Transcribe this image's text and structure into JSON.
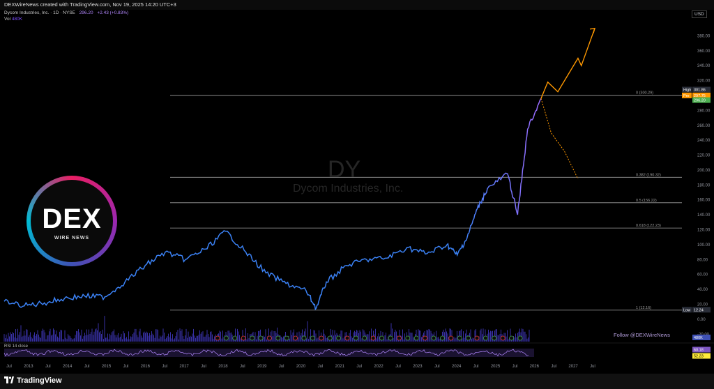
{
  "header": {
    "created_by": "DEXWireNews created with TradingView.com, Nov 19, 2025 14:20 UTC+3",
    "symbol": "Dycom Industries, Inc. · 1D · NYSE",
    "price": "296.20",
    "change": "+2.43 (+0.83%)",
    "vol_label": "Vol",
    "vol_value": "480K",
    "currency": "USD"
  },
  "watermark": {
    "ticker": "DY",
    "name": "Dycom Industries, Inc."
  },
  "logo": {
    "text": "DEX",
    "subtitle": "WIRE NEWS"
  },
  "follow_text": "Follow @DEXWireNews",
  "rsi": {
    "label": "RSI 14 close",
    "value": "52.23",
    "value2": "60.18"
  },
  "footer": {
    "brand": "TradingView"
  },
  "colors": {
    "price_line": "#3b82f6",
    "price_line_recent": "#9c6bff",
    "projection_up": "#ff9800",
    "projection_down": "#ff9800",
    "volume": "#4338ca"
  },
  "chart_data": {
    "type": "line",
    "series": [
      {
        "x": [
          "2012-07",
          "2013-01",
          "2013-07",
          "2014-01",
          "2014-07",
          "2015-01",
          "2015-07",
          "2016-01",
          "2016-07",
          "2017-01",
          "2017-07",
          "2018-01",
          "2018-07",
          "2019-01",
          "2019-07",
          "2020-01",
          "2020-04",
          "2020-07",
          "2021-01",
          "2021-07",
          "2022-01",
          "2022-07",
          "2023-01",
          "2023-07",
          "2023-10",
          "2024-01",
          "2024-04",
          "2024-07",
          "2025-01",
          "2025-04",
          "2025-07",
          "2025-11"
        ],
        "values": [
          24,
          18,
          22,
          28,
          31,
          30,
          50,
          72,
          90,
          80,
          94,
          118,
          90,
          62,
          48,
          38,
          15,
          50,
          72,
          80,
          82,
          96,
          88,
          100,
          86,
          110,
          148,
          175,
          195,
          140,
          255,
          296
        ]
      }
    ],
    "ylim": [
      -30,
      400
    ],
    "y_ticks": [
      "380.00",
      "360.00",
      "340.00",
      "320.00",
      "300.00",
      "280.00",
      "260.00",
      "240.00",
      "220.00",
      "200.00",
      "180.00",
      "160.00",
      "140.00",
      "120.00",
      "100.00",
      "80.00",
      "60.00",
      "40.00",
      "20.00",
      "0.00",
      "-20.00"
    ],
    "x_ticks": [
      "Jul",
      "2013",
      "Jul",
      "2014",
      "Jul",
      "2015",
      "Jul",
      "2016",
      "Jul",
      "2017",
      "Jul",
      "2018",
      "Jul",
      "2019",
      "Jul",
      "2020",
      "Jul",
      "2021",
      "Jul",
      "2022",
      "Jul",
      "2023",
      "Jul",
      "2024",
      "Jul",
      "2025",
      "Jul",
      "2026",
      "Jul",
      "2027",
      "Jul"
    ],
    "fib_levels": [
      {
        "label": "0 (300.29)",
        "value": 300.29
      },
      {
        "label": "0.382 (190.32)",
        "value": 190.32
      },
      {
        "label": "0.5 (156.22)",
        "value": 156.22
      },
      {
        "label": "0.618 (122.23)",
        "value": 122.23
      },
      {
        "label": "1 (12.16)",
        "value": 12.16
      }
    ],
    "price_badges": [
      {
        "label": "High",
        "value": "301.86",
        "color": "#2a2e39"
      },
      {
        "label": "Pre",
        "value": "297.75",
        "color": "#ff9800"
      },
      {
        "label": "",
        "value": "296.20",
        "color": "#4caf50"
      },
      {
        "label": "Low",
        "value": "12.24",
        "color": "#2a2e39"
      }
    ],
    "projection_up": {
      "x": [
        "2025-11",
        "2026-01",
        "2026-04",
        "2026-10",
        "2026-11",
        "2027-03"
      ],
      "values": [
        296,
        318,
        305,
        350,
        340,
        390
      ]
    },
    "projection_down": {
      "x": [
        "2025-11",
        "2026-02",
        "2026-06",
        "2026-10"
      ],
      "values": [
        296,
        250,
        225,
        188
      ]
    },
    "volume_label": "480K",
    "rsi_badges": [
      "60.18",
      "52.23"
    ]
  }
}
